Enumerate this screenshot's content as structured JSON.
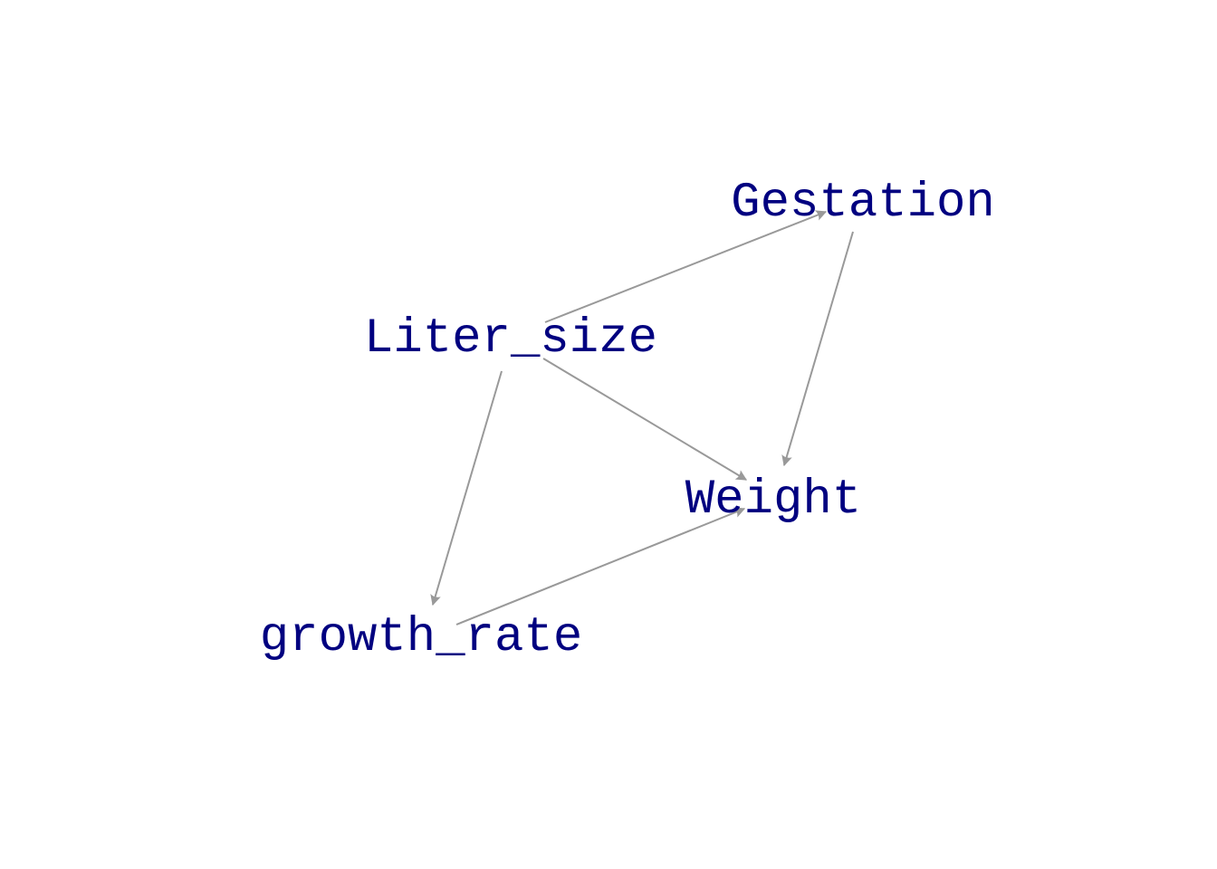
{
  "colors": {
    "node_text": "#000080",
    "edge": "#999999",
    "background": "#ffffff"
  },
  "nodes": [
    {
      "id": "gestation",
      "label": "Gestation"
    },
    {
      "id": "liter_size",
      "label": "Liter_size"
    },
    {
      "id": "weight",
      "label": "Weight"
    },
    {
      "id": "growth_rate",
      "label": "growth_rate"
    }
  ],
  "edges": [
    {
      "from": "liter_size",
      "to": "gestation"
    },
    {
      "from": "liter_size",
      "to": "weight"
    },
    {
      "from": "liter_size",
      "to": "growth_rate"
    },
    {
      "from": "gestation",
      "to": "weight"
    },
    {
      "from": "growth_rate",
      "to": "weight"
    }
  ]
}
